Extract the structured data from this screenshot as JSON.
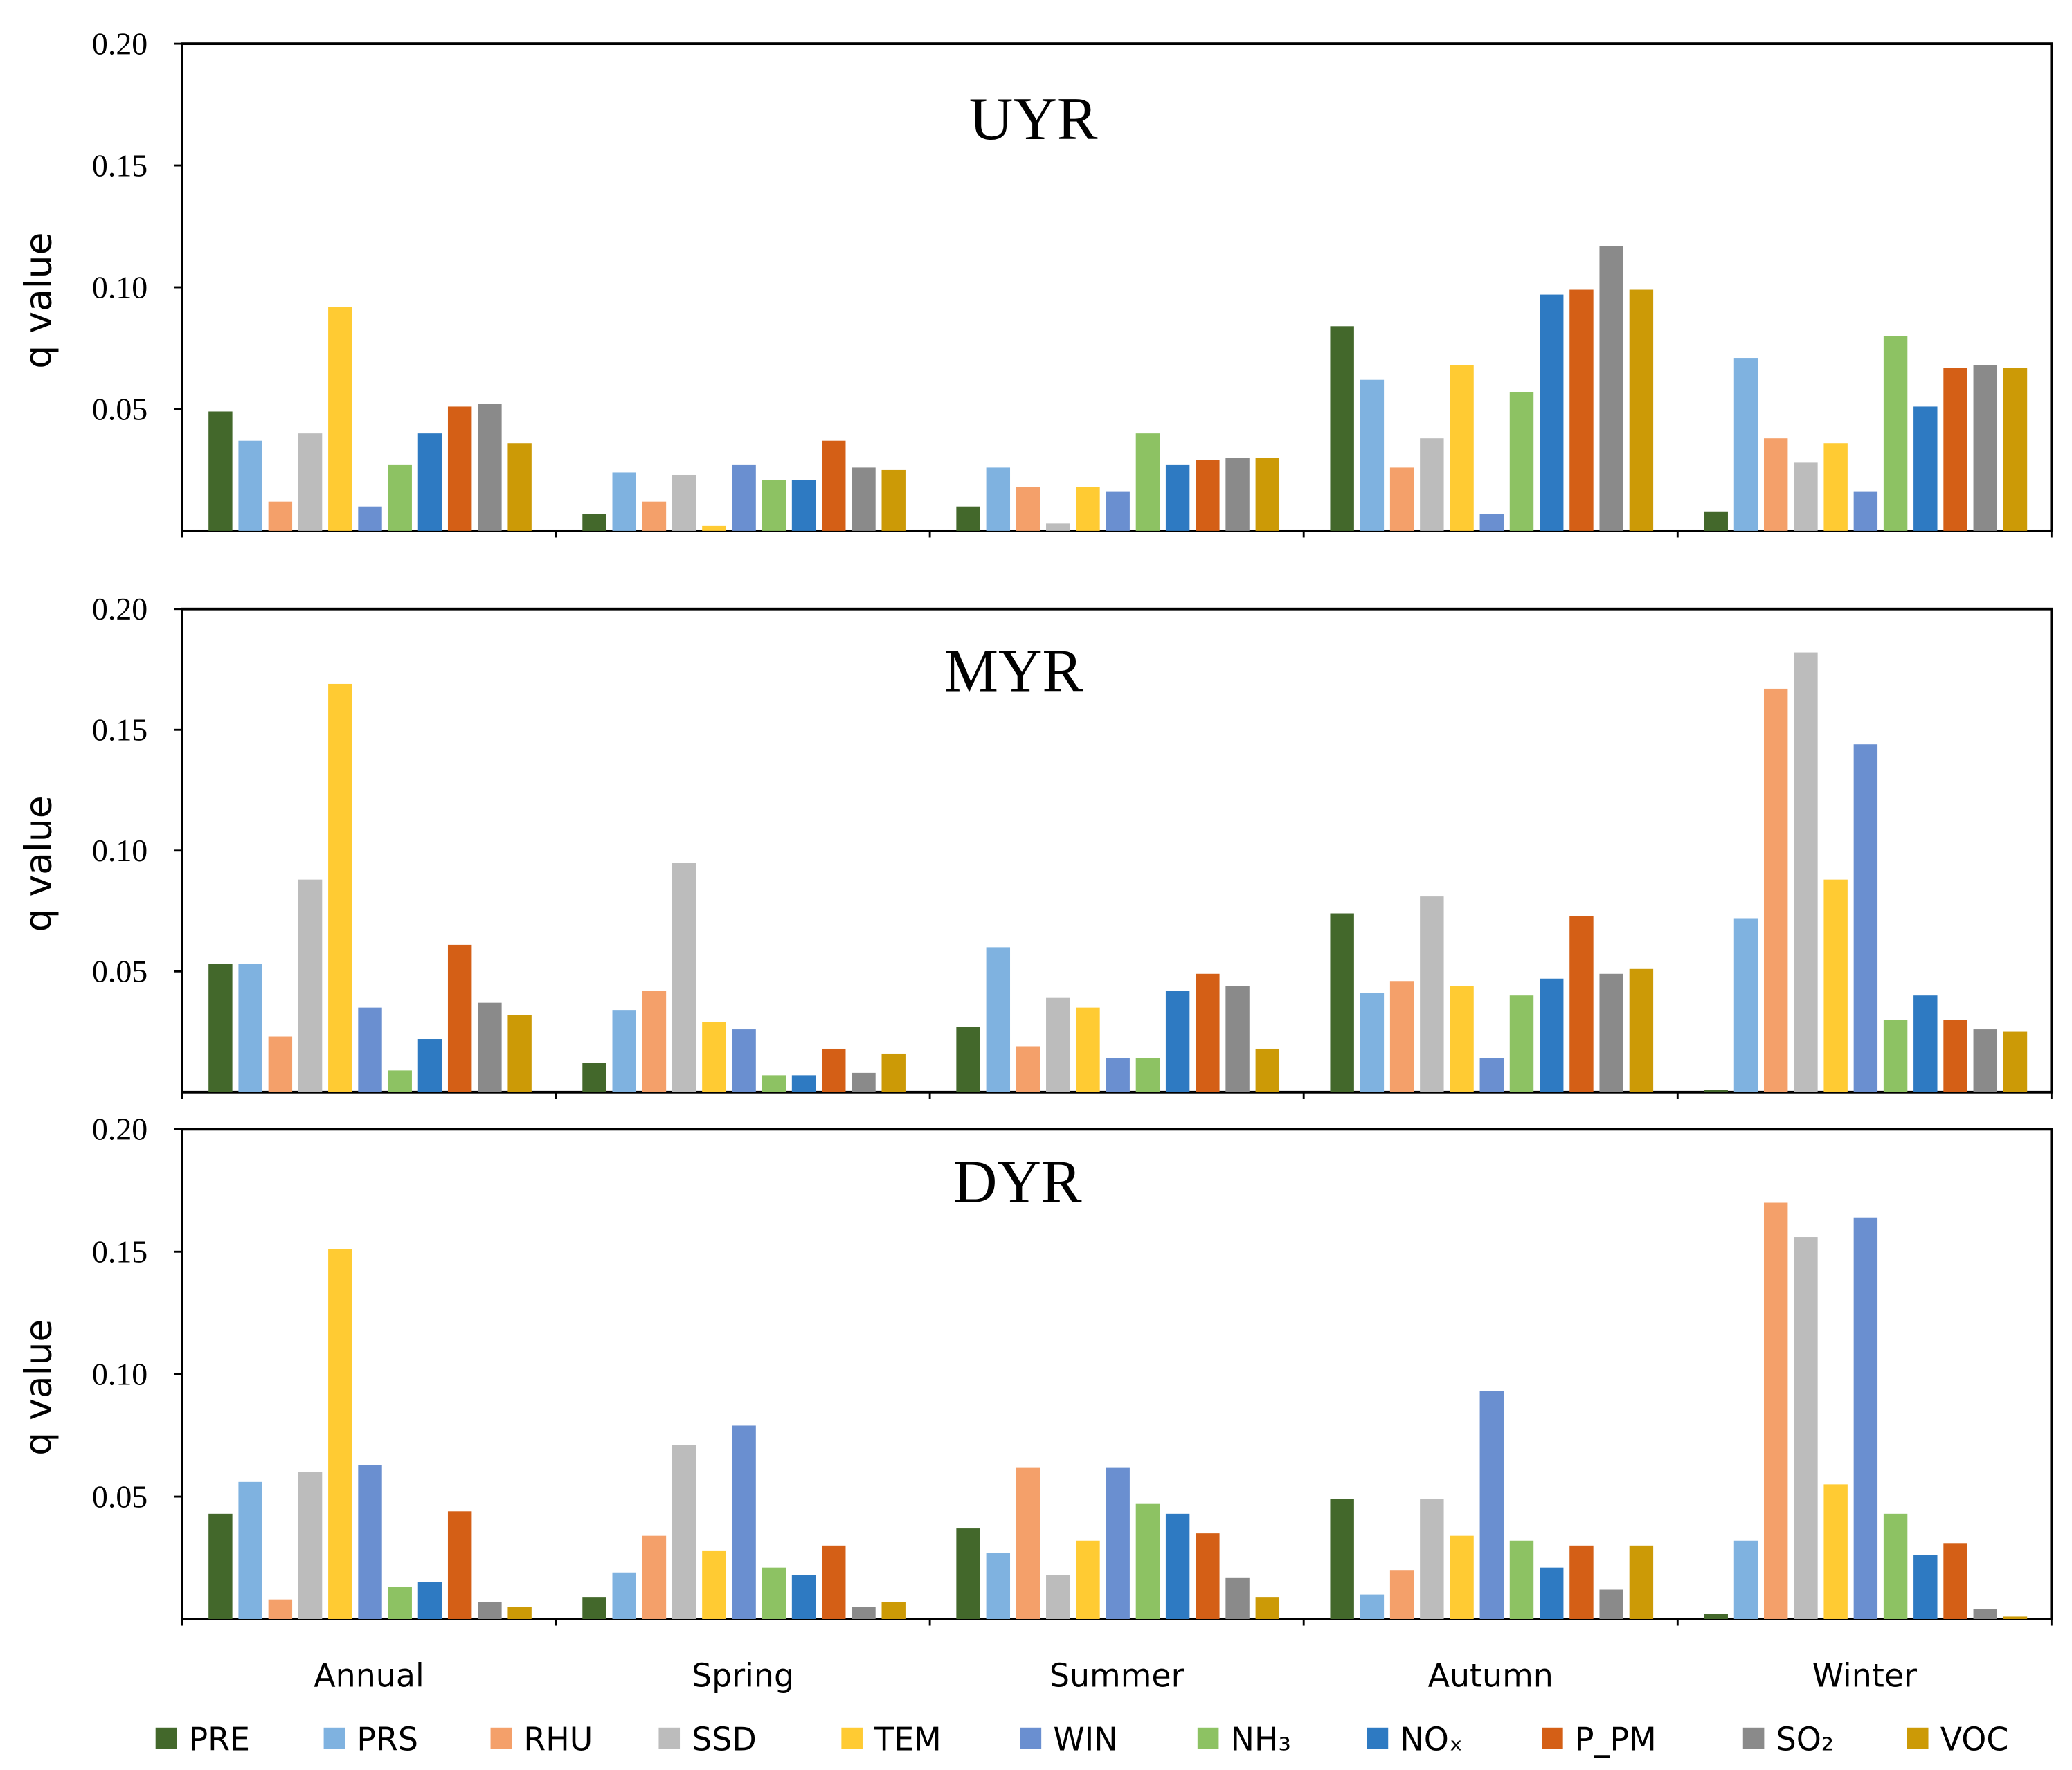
{
  "chart_data": {
    "type": "bar",
    "categories": [
      "Annual",
      "Spring",
      "Summer",
      "Autumn",
      "Winter"
    ],
    "legend_position": "bottom",
    "ylabel": "q value",
    "ylim": [
      0,
      0.2
    ],
    "yticks": [
      "0.05",
      "0.10",
      "0.15",
      "0.20"
    ],
    "ytick_values": [
      0.05,
      0.1,
      0.15,
      0.2
    ],
    "series_names": [
      "PRE",
      "PRS",
      "RHU",
      "SSD",
      "TEM",
      "WIN",
      "NH₃",
      "NOₓ",
      "P_PM",
      "SO₂",
      "VOC"
    ],
    "colors": [
      "#43682b",
      "#7fb2e0",
      "#f4a06a",
      "#bcbcbc",
      "#ffcb33",
      "#6a8fd0",
      "#8dc263",
      "#2e7ac2",
      "#d45f16",
      "#8a8a8a",
      "#cc9a06"
    ],
    "panels": [
      {
        "title": "UYR",
        "values": [
          [
            0.049,
            0.037,
            0.012,
            0.04,
            0.092,
            0.01,
            0.027,
            0.04,
            0.051,
            0.052,
            0.036
          ],
          [
            0.007,
            0.024,
            0.012,
            0.023,
            0.002,
            0.027,
            0.021,
            0.021,
            0.037,
            0.026,
            0.025
          ],
          [
            0.01,
            0.026,
            0.018,
            0.003,
            0.018,
            0.016,
            0.04,
            0.027,
            0.029,
            0.03,
            0.03
          ],
          [
            0.084,
            0.062,
            0.026,
            0.038,
            0.068,
            0.007,
            0.057,
            0.097,
            0.099,
            0.117,
            0.099
          ],
          [
            0.008,
            0.071,
            0.038,
            0.028,
            0.036,
            0.016,
            0.08,
            0.051,
            0.067,
            0.068,
            0.067
          ]
        ]
      },
      {
        "title": "MYR",
        "values": [
          [
            0.053,
            0.053,
            0.023,
            0.088,
            0.169,
            0.035,
            0.009,
            0.022,
            0.061,
            0.037,
            0.032
          ],
          [
            0.012,
            0.034,
            0.042,
            0.095,
            0.029,
            0.026,
            0.007,
            0.007,
            0.018,
            0.008,
            0.016
          ],
          [
            0.027,
            0.06,
            0.019,
            0.039,
            0.035,
            0.014,
            0.014,
            0.042,
            0.049,
            0.044,
            0.018
          ],
          [
            0.074,
            0.041,
            0.046,
            0.081,
            0.044,
            0.014,
            0.04,
            0.047,
            0.073,
            0.049,
            0.051
          ],
          [
            0.001,
            0.072,
            0.167,
            0.182,
            0.088,
            0.144,
            0.03,
            0.04,
            0.03,
            0.026,
            0.025
          ]
        ]
      },
      {
        "title": "DYR",
        "values": [
          [
            0.043,
            0.056,
            0.008,
            0.06,
            0.151,
            0.063,
            0.013,
            0.015,
            0.044,
            0.007,
            0.005
          ],
          [
            0.009,
            0.019,
            0.034,
            0.071,
            0.028,
            0.079,
            0.021,
            0.018,
            0.03,
            0.005,
            0.007
          ],
          [
            0.037,
            0.027,
            0.062,
            0.018,
            0.032,
            0.062,
            0.047,
            0.043,
            0.035,
            0.017,
            0.009
          ],
          [
            0.049,
            0.01,
            0.02,
            0.049,
            0.034,
            0.093,
            0.032,
            0.021,
            0.03,
            0.012,
            0.03
          ],
          [
            0.002,
            0.032,
            0.17,
            0.156,
            0.055,
            0.164,
            0.043,
            0.026,
            0.031,
            0.004,
            0.001
          ]
        ]
      }
    ]
  }
}
